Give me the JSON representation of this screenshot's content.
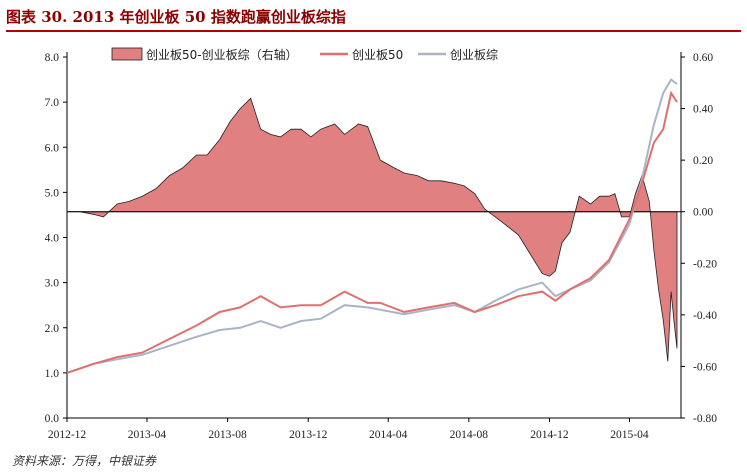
{
  "title": "图表 30. 2013 年创业板 50 指数跑赢创业板综指",
  "source": "资料来源：万得，中银证券",
  "chart_data": {
    "type": "line",
    "x_ticks": [
      "2012-12",
      "2013-04",
      "2013-08",
      "2013-12",
      "2014-04",
      "2014-08",
      "2014-12",
      "2015-04"
    ],
    "y_left": {
      "min": 0.0,
      "max": 8.0,
      "ticks": [
        "0.0",
        "1.0",
        "2.0",
        "3.0",
        "4.0",
        "5.0",
        "6.0",
        "7.0",
        "8.0"
      ]
    },
    "y_right": {
      "min": -0.8,
      "max": 0.6,
      "ticks": [
        "-0.80",
        "-0.60",
        "-0.40",
        "-0.20",
        "0.00",
        "0.20",
        "0.40",
        "0.60"
      ]
    },
    "legend_position": "top",
    "series": [
      {
        "name": "创业板50-创业板综（右轴）",
        "kind": "area",
        "axis": "right",
        "color": "#e08080",
        "x": [
          "2012-12-01",
          "2012-12-20",
          "2013-01-10",
          "2013-01-25",
          "2013-02-15",
          "2013-03-05",
          "2013-03-25",
          "2013-04-15",
          "2013-05-05",
          "2013-05-25",
          "2013-06-15",
          "2013-07-01",
          "2013-07-20",
          "2013-08-05",
          "2013-08-20",
          "2013-09-05",
          "2013-09-20",
          "2013-10-05",
          "2013-10-20",
          "2013-11-05",
          "2013-11-20",
          "2013-12-05",
          "2013-12-20",
          "2014-01-10",
          "2014-01-25",
          "2014-02-15",
          "2014-03-01",
          "2014-03-20",
          "2014-04-10",
          "2014-04-25",
          "2014-05-15",
          "2014-06-01",
          "2014-06-20",
          "2014-07-10",
          "2014-07-25",
          "2014-08-10",
          "2014-08-25",
          "2014-09-10",
          "2014-09-25",
          "2014-10-15",
          "2014-11-01",
          "2014-11-20",
          "2014-12-01",
          "2014-12-10",
          "2014-12-20",
          "2015-01-01",
          "2015-01-15",
          "2015-02-01",
          "2015-02-15",
          "2015-03-01",
          "2015-03-10",
          "2015-03-20",
          "2015-04-01",
          "2015-04-10",
          "2015-04-20",
          "2015-05-01",
          "2015-05-08",
          "2015-05-15",
          "2015-05-22",
          "2015-05-29",
          "2015-06-03",
          "2015-06-08",
          "2015-06-12"
        ],
        "values": [
          0.0,
          0.0,
          -0.01,
          -0.02,
          0.03,
          0.04,
          0.06,
          0.09,
          0.14,
          0.17,
          0.22,
          0.22,
          0.28,
          0.35,
          0.4,
          0.44,
          0.32,
          0.3,
          0.29,
          0.32,
          0.32,
          0.29,
          0.32,
          0.34,
          0.3,
          0.34,
          0.33,
          0.2,
          0.17,
          0.15,
          0.14,
          0.12,
          0.12,
          0.11,
          0.1,
          0.07,
          0.01,
          -0.02,
          -0.05,
          -0.09,
          -0.16,
          -0.24,
          -0.25,
          -0.23,
          -0.12,
          -0.08,
          0.06,
          0.03,
          0.06,
          0.06,
          0.07,
          -0.02,
          -0.02,
          0.07,
          0.14,
          0.04,
          -0.15,
          -0.3,
          -0.42,
          -0.58,
          -0.31,
          -0.44,
          -0.53
        ]
      },
      {
        "name": "创业板50",
        "kind": "line",
        "axis": "left",
        "color": "#e07070",
        "x": [
          "2012-12-01",
          "2013-01-10",
          "2013-02-15",
          "2013-03-25",
          "2013-05-05",
          "2013-06-15",
          "2013-07-20",
          "2013-08-20",
          "2013-09-20",
          "2013-10-20",
          "2013-11-20",
          "2013-12-20",
          "2014-01-25",
          "2014-03-01",
          "2014-03-20",
          "2014-04-25",
          "2014-06-01",
          "2014-07-10",
          "2014-08-10",
          "2014-09-10",
          "2014-10-15",
          "2014-11-20",
          "2014-12-10",
          "2015-01-01",
          "2015-02-01",
          "2015-03-01",
          "2015-04-01",
          "2015-04-20",
          "2015-05-08",
          "2015-05-22",
          "2015-06-03",
          "2015-06-12"
        ],
        "values": [
          1.0,
          1.2,
          1.35,
          1.45,
          1.75,
          2.05,
          2.35,
          2.45,
          2.7,
          2.45,
          2.5,
          2.5,
          2.8,
          2.55,
          2.55,
          2.35,
          2.45,
          2.55,
          2.35,
          2.5,
          2.7,
          2.8,
          2.6,
          2.85,
          3.1,
          3.5,
          4.4,
          5.2,
          6.1,
          6.4,
          7.2,
          7.0
        ]
      },
      {
        "name": "创业板综",
        "kind": "line",
        "axis": "left",
        "color": "#a9b4c6",
        "x": [
          "2012-12-01",
          "2013-01-10",
          "2013-02-15",
          "2013-03-25",
          "2013-05-05",
          "2013-06-15",
          "2013-07-20",
          "2013-08-20",
          "2013-09-20",
          "2013-10-20",
          "2013-11-20",
          "2013-12-20",
          "2014-01-25",
          "2014-03-01",
          "2014-03-20",
          "2014-04-25",
          "2014-06-01",
          "2014-07-10",
          "2014-08-10",
          "2014-09-10",
          "2014-10-15",
          "2014-11-20",
          "2014-12-10",
          "2015-01-01",
          "2015-02-01",
          "2015-03-01",
          "2015-04-01",
          "2015-04-20",
          "2015-05-08",
          "2015-05-22",
          "2015-06-03",
          "2015-06-12"
        ],
        "values": [
          1.0,
          1.2,
          1.3,
          1.4,
          1.6,
          1.8,
          1.95,
          2.0,
          2.15,
          2.0,
          2.15,
          2.2,
          2.5,
          2.45,
          2.4,
          2.3,
          2.4,
          2.5,
          2.35,
          2.6,
          2.85,
          3.0,
          2.7,
          2.85,
          3.05,
          3.45,
          4.3,
          5.3,
          6.5,
          7.2,
          7.5,
          7.4
        ]
      }
    ]
  }
}
